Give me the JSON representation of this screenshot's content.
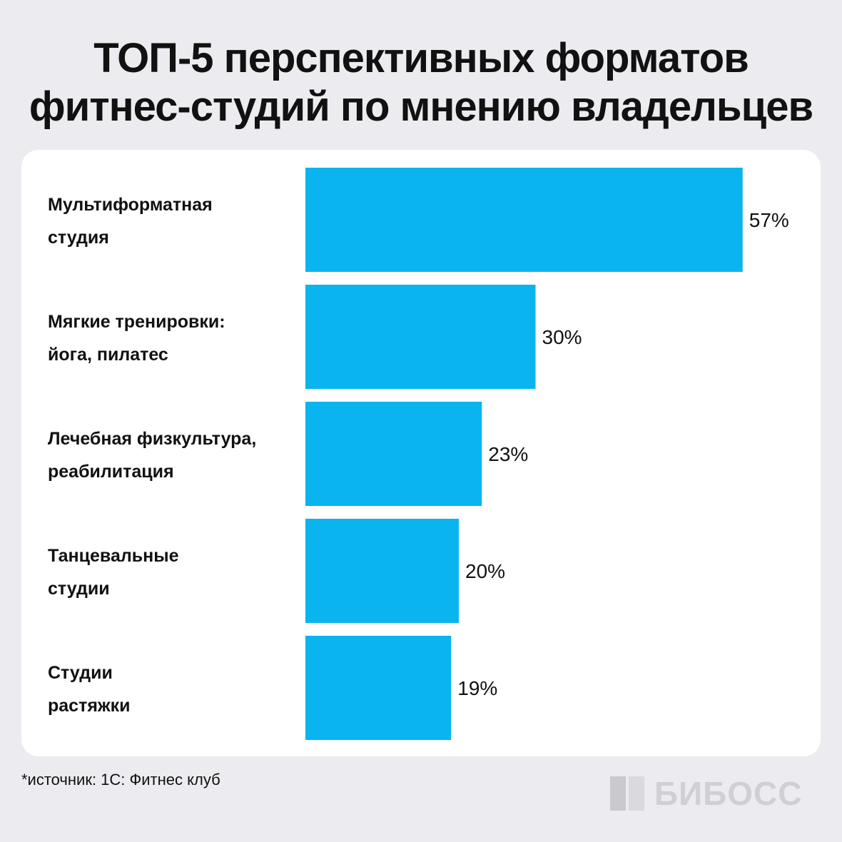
{
  "title": {
    "line1": "ТОП-5 перспективных форматов",
    "line2": "фитнес-студий по мнению владельцев"
  },
  "chart_data": {
    "type": "bar",
    "orientation": "horizontal",
    "categories": [
      [
        "Мультиформатная",
        "студия"
      ],
      [
        "Мягкие тренировки:",
        "йога, пилатес"
      ],
      [
        "Лечебная физкультура,",
        "реабилитация"
      ],
      [
        "Танцевальные",
        "студии"
      ],
      [
        "Студии",
        "растяжки"
      ]
    ],
    "values": [
      57,
      30,
      23,
      20,
      19
    ],
    "value_labels": [
      "57%",
      "30%",
      "23%",
      "20%",
      "19%"
    ],
    "unit": "%",
    "bar_color": "#0ab4ef",
    "grid": false,
    "legend": "none"
  },
  "footnote": "*источник: 1С: Фитнес клуб",
  "brand": {
    "name": "БИБОСС",
    "logo_icon": "biboss-logo-icon"
  }
}
